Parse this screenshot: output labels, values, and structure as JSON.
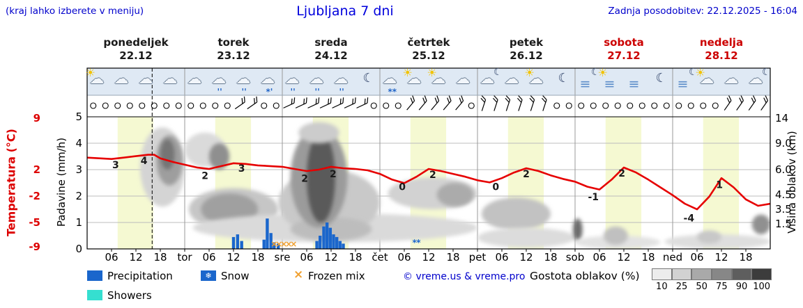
{
  "header": {
    "hint": "(kraj lahko izberete v meniju)",
    "title": "Ljubljana 7 dni",
    "updated": "Zadnja posodobitev: 22.12.2025 - 16:04"
  },
  "colors": {
    "link_blue": "#0000cc",
    "title_blue": "#0000dd",
    "red": "#dd0000",
    "temp_line": "#e60000",
    "precip": "#1a66cc",
    "showers": "#35dfd0",
    "frozen": "#f0a030",
    "daylight": "#f5f9d2",
    "icon_strip": "#dfe9f4",
    "grid": "#bcbcbc",
    "day_line": "#999999",
    "density_colors": [
      "#ececec",
      "#d2d2d2",
      "#a9a9a9",
      "#878787",
      "#5e5e5e",
      "#3c3c3c"
    ]
  },
  "chart_data": {
    "type": "meteogram",
    "title": "Ljubljana 7 dni",
    "days": [
      {
        "name": "ponedeljek",
        "date": "22.12",
        "color": "#1a1a1a"
      },
      {
        "name": "torek",
        "date": "23.12",
        "color": "#1a1a1a"
      },
      {
        "name": "sreda",
        "date": "24.12",
        "color": "#1a1a1a"
      },
      {
        "name": "četrtek",
        "date": "25.12",
        "color": "#1a1a1a"
      },
      {
        "name": "petek",
        "date": "26.12",
        "color": "#1a1a1a"
      },
      {
        "name": "sobota",
        "date": "27.12",
        "color": "#cc0000"
      },
      {
        "name": "nedelja",
        "date": "28.12",
        "color": "#cc0000"
      }
    ],
    "axes": {
      "temp": {
        "title": "Temperatura (°C)",
        "ticks": [
          [
            "9",
            4.95
          ],
          [
            "2",
            3
          ],
          [
            "-2",
            2
          ],
          [
            "-5",
            1
          ],
          [
            "-9",
            0.08
          ]
        ]
      },
      "precip": {
        "title": "Padavine (mm/h)",
        "ticks": [
          [
            "0",
            0
          ],
          [
            "1",
            1
          ],
          [
            "2",
            2
          ],
          [
            "3",
            3
          ],
          [
            "4",
            4
          ],
          [
            "5",
            5
          ]
        ]
      },
      "cloud": {
        "title": "Višina oblakov (km)",
        "ticks": [
          [
            "14",
            4.95
          ],
          [
            "9.0",
            4
          ],
          [
            "6.0",
            3
          ],
          [
            "4.5",
            2.05
          ],
          [
            "3.5",
            1.5
          ],
          [
            "1.5",
            0.95
          ]
        ]
      }
    },
    "x_ticks": [
      [
        6,
        "06"
      ],
      [
        12,
        "12"
      ],
      [
        18,
        "18"
      ],
      [
        24,
        "tor"
      ],
      [
        30,
        "06"
      ],
      [
        36,
        "12"
      ],
      [
        42,
        "18"
      ],
      [
        48,
        "sre"
      ],
      [
        54,
        "06"
      ],
      [
        60,
        "12"
      ],
      [
        66,
        "18"
      ],
      [
        72,
        "čet"
      ],
      [
        78,
        "06"
      ],
      [
        84,
        "12"
      ],
      [
        90,
        "18"
      ],
      [
        96,
        "pet"
      ],
      [
        102,
        "06"
      ],
      [
        108,
        "12"
      ],
      [
        114,
        "18"
      ],
      [
        120,
        "sob"
      ],
      [
        126,
        "06"
      ],
      [
        132,
        "12"
      ],
      [
        138,
        "18"
      ],
      [
        144,
        "ned"
      ],
      [
        150,
        "06"
      ],
      [
        156,
        "12"
      ],
      [
        162,
        "18"
      ]
    ],
    "now_h": 16,
    "daylight": [
      [
        7.5,
        16.3
      ],
      [
        31.5,
        40.3
      ],
      [
        55.5,
        64.3
      ],
      [
        79.5,
        88.3
      ],
      [
        103.5,
        112.3
      ],
      [
        127.5,
        136.3
      ],
      [
        151.5,
        160.3
      ]
    ],
    "temperature": {
      "unit": "°C",
      "points": [
        [
          0,
          3.7
        ],
        [
          3,
          3.6
        ],
        [
          6,
          3.5
        ],
        [
          9,
          3.7
        ],
        [
          12,
          3.9
        ],
        [
          15,
          4.1
        ],
        [
          16.5,
          4.1
        ],
        [
          18,
          3.6
        ],
        [
          21,
          3.1
        ],
        [
          24,
          2.7
        ],
        [
          27,
          2.3
        ],
        [
          30,
          2.1
        ],
        [
          33,
          2.5
        ],
        [
          36,
          2.9
        ],
        [
          39,
          2.8
        ],
        [
          42,
          2.6
        ],
        [
          45,
          2.5
        ],
        [
          48,
          2.4
        ],
        [
          51,
          2.1
        ],
        [
          54,
          1.8
        ],
        [
          57,
          2.0
        ],
        [
          60,
          2.4
        ],
        [
          63,
          2.2
        ],
        [
          66,
          2.1
        ],
        [
          69,
          1.9
        ],
        [
          72,
          1.4
        ],
        [
          75,
          0.6
        ],
        [
          78,
          0.1
        ],
        [
          81,
          1.0
        ],
        [
          84,
          2.1
        ],
        [
          87,
          1.8
        ],
        [
          90,
          1.4
        ],
        [
          93,
          1.0
        ],
        [
          96,
          0.5
        ],
        [
          99,
          0.2
        ],
        [
          102,
          0.8
        ],
        [
          105,
          1.6
        ],
        [
          108,
          2.2
        ],
        [
          111,
          1.8
        ],
        [
          114,
          1.2
        ],
        [
          117,
          0.7
        ],
        [
          120,
          0.3
        ],
        [
          123,
          -0.4
        ],
        [
          126,
          -0.8
        ],
        [
          129,
          0.6
        ],
        [
          132,
          2.3
        ],
        [
          135,
          1.6
        ],
        [
          138,
          0.6
        ],
        [
          141,
          -0.5
        ],
        [
          144,
          -1.6
        ],
        [
          147,
          -2.8
        ],
        [
          150,
          -3.6
        ],
        [
          153,
          -1.8
        ],
        [
          156,
          0.8
        ],
        [
          159,
          -0.5
        ],
        [
          162,
          -2.2
        ],
        [
          165,
          -3.1
        ],
        [
          168,
          -2.8
        ]
      ],
      "labels": [
        [
          7,
          2.2,
          "3"
        ],
        [
          14,
          2.8,
          "4"
        ],
        [
          29,
          0.7,
          "2"
        ],
        [
          38,
          1.7,
          "3"
        ],
        [
          53.5,
          0.3,
          "2"
        ],
        [
          60.5,
          0.9,
          "2"
        ],
        [
          77.5,
          -0.9,
          "0"
        ],
        [
          85,
          0.8,
          "2"
        ],
        [
          100.5,
          -0.9,
          "0"
        ],
        [
          108,
          0.9,
          "2"
        ],
        [
          124.5,
          -2.3,
          "-1"
        ],
        [
          131.5,
          1.0,
          "2"
        ],
        [
          148,
          -5.3,
          "-4"
        ],
        [
          155.5,
          -0.6,
          "1"
        ]
      ]
    },
    "precipitation": {
      "unit": "mm/h",
      "bars": [
        [
          36,
          0.45
        ],
        [
          37,
          0.55
        ],
        [
          38,
          0.3
        ],
        [
          43.5,
          0.35
        ],
        [
          44.3,
          1.15
        ],
        [
          45.2,
          0.6
        ],
        [
          46,
          0.25
        ],
        [
          47,
          0.2
        ],
        [
          56.5,
          0.3
        ],
        [
          57.3,
          0.5
        ],
        [
          58.2,
          0.85
        ],
        [
          59,
          1.0
        ],
        [
          59.8,
          0.8
        ],
        [
          60.6,
          0.55
        ],
        [
          61.4,
          0.45
        ],
        [
          62.2,
          0.3
        ],
        [
          63,
          0.2
        ]
      ]
    },
    "frozen_mix": [
      46,
      47.2,
      48.4,
      49.6,
      50.8
    ],
    "snow_marks": [
      80.5,
      81.5
    ],
    "clouds": [
      [
        13,
        24,
        1.6,
        4.6,
        "#d4d4d4"
      ],
      [
        24,
        34,
        3.1,
        4.4,
        "#dadada"
      ],
      [
        17,
        23.5,
        2.4,
        4.3,
        "#9e9e9e"
      ],
      [
        18,
        21.5,
        3.0,
        4.15,
        "#757575"
      ],
      [
        25,
        47,
        0.7,
        2.3,
        "#c6c6c6"
      ],
      [
        28,
        42,
        0.9,
        2.1,
        "#a0a0a0"
      ],
      [
        30,
        35,
        3.0,
        4.0,
        "#8f8f8f"
      ],
      [
        26,
        96,
        0.25,
        1.35,
        "#dadada"
      ],
      [
        47,
        72,
        0.5,
        3.0,
        "#c9c9c9"
      ],
      [
        50,
        70,
        0.3,
        1.2,
        "#bdbdbd"
      ],
      [
        50,
        64,
        0.8,
        4.6,
        "#9b9b9b"
      ],
      [
        54,
        61,
        1.0,
        4.4,
        "#5a5a5a"
      ],
      [
        52,
        62,
        4.0,
        4.8,
        "#cccccc"
      ],
      [
        74,
        96,
        1.5,
        2.7,
        "#d2d2d2"
      ],
      [
        86,
        95,
        1.6,
        2.5,
        "#ababab"
      ],
      [
        97,
        114,
        0.7,
        1.95,
        "#c2c2c2"
      ],
      [
        96,
        120,
        0.05,
        0.8,
        "#dcdcdc"
      ],
      [
        119.5,
        121.8,
        0.3,
        1.15,
        "#6b6b6b"
      ],
      [
        120,
        141,
        0.0,
        0.5,
        "#e2e2e2"
      ],
      [
        127,
        133,
        0.15,
        0.85,
        "#c0c0c0"
      ],
      [
        142,
        168,
        0.0,
        0.55,
        "#dedede"
      ],
      [
        150,
        156,
        0.2,
        0.7,
        "#c8c8c8"
      ],
      [
        163.5,
        168,
        0.55,
        1.3,
        "#909090"
      ]
    ],
    "icons": [
      "sun-cloud",
      "cloud",
      "cloud",
      "cloud",
      "cloud",
      "rain",
      "rain",
      "sleet",
      "rain",
      "rain",
      "rain",
      "moon",
      "snow",
      "sun-cloud",
      "sun-cloud",
      "cloud",
      "moon-cloud",
      "cloud",
      "sun-cloud",
      "moon",
      "moon-fog",
      "sun-fog",
      "fog",
      "moon",
      "moon-fog",
      "sun-cloud",
      "cloud",
      "moon-cloud"
    ],
    "icon_glyphs": {
      "sun": "☀",
      "moon": "☾",
      "cloud": "☁",
      "fog": "≡",
      "rain": "''",
      "snow": "**",
      "sleet": "*'"
    },
    "wind_barbs": [
      [
        36,
        42,
        -35
      ],
      [
        48,
        69,
        -25
      ],
      [
        78,
        93,
        -50
      ],
      [
        96,
        113,
        -72
      ],
      [
        156,
        168,
        -55
      ]
    ],
    "legend": {
      "precipitation": "Precipitation",
      "snow": "Snow",
      "snow_glyph": "❄",
      "frozen": "Frozen mix",
      "frozen_glyph": "×",
      "showers": "Showers",
      "copyright": "© vreme.us & vreme.pro",
      "density_label": "Gostota oblakov (%)",
      "density_ticks": [
        "10",
        "25",
        "50",
        "75",
        "90",
        "100"
      ]
    }
  }
}
